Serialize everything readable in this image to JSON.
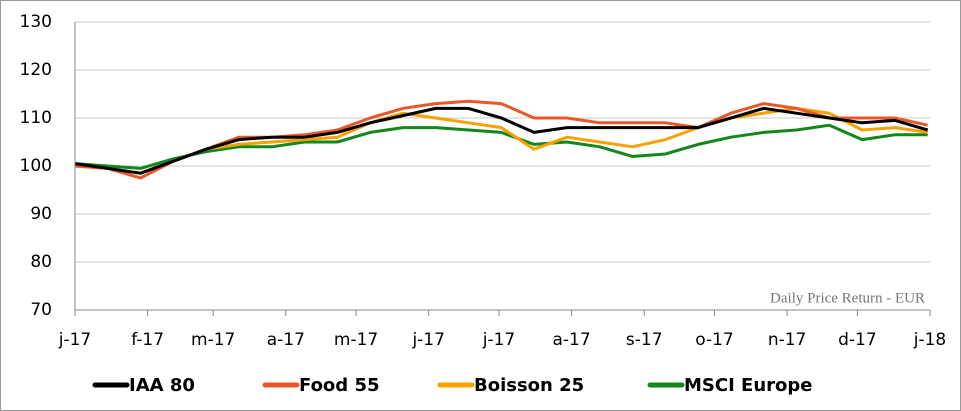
{
  "chart_data": {
    "type": "line",
    "annotation": "Daily Price Return - EUR",
    "x": [
      0,
      14,
      28,
      42,
      56,
      70,
      84,
      98,
      112,
      126,
      140,
      154,
      168,
      182,
      196,
      210,
      224,
      238,
      252,
      266,
      280,
      294,
      308,
      322,
      336,
      350,
      364
    ],
    "xlim": [
      0,
      365
    ],
    "xticks": [
      {
        "value": 0,
        "label": "j-17"
      },
      {
        "value": 31,
        "label": "f-17"
      },
      {
        "value": 59,
        "label": "m-17"
      },
      {
        "value": 90,
        "label": "a-17"
      },
      {
        "value": 120,
        "label": "m-17"
      },
      {
        "value": 151,
        "label": "j-17"
      },
      {
        "value": 181,
        "label": "j-17"
      },
      {
        "value": 212,
        "label": "a-17"
      },
      {
        "value": 243,
        "label": "s-17"
      },
      {
        "value": 273,
        "label": "o-17"
      },
      {
        "value": 304,
        "label": "n-17"
      },
      {
        "value": 334,
        "label": "d-17"
      },
      {
        "value": 365,
        "label": "j-18"
      }
    ],
    "ylim": [
      70,
      130
    ],
    "yticks": [
      70,
      80,
      90,
      100,
      110,
      120,
      130
    ],
    "grid": true,
    "legend": "bottom",
    "series": [
      {
        "name": "IAA 80",
        "color": "#000000",
        "values": [
          100.5,
          99.5,
          98.5,
          101,
          103.5,
          105.5,
          106,
          106,
          107,
          109,
          110.5,
          112,
          112,
          110,
          107,
          108,
          108,
          108,
          108,
          108,
          110,
          112,
          111,
          110,
          109,
          109.5,
          107.5
        ]
      },
      {
        "name": "Food 55",
        "color": "#e8582a",
        "values": [
          100,
          99.5,
          97.5,
          101,
          103.5,
          106,
          106,
          106.5,
          107.5,
          110,
          112,
          113,
          113.5,
          113,
          110,
          110,
          109,
          109,
          109,
          108,
          111,
          113,
          112,
          110,
          110,
          110,
          108.5
        ]
      },
      {
        "name": "Boisson 25",
        "color": "#f5a100",
        "values": [
          100,
          99.5,
          98.5,
          101,
          103.5,
          104.5,
          105,
          105.5,
          106,
          109,
          111,
          110,
          109,
          108,
          103.5,
          106,
          105,
          104,
          105.5,
          108,
          110,
          111,
          112,
          111,
          107.5,
          108,
          107
        ]
      },
      {
        "name": "MSCI Europe",
        "color": "#12871c",
        "values": [
          100.5,
          100,
          99.5,
          101.5,
          103,
          104,
          104,
          105,
          105,
          107,
          108,
          108,
          107.5,
          107,
          104.5,
          105,
          104,
          102,
          102.5,
          104.5,
          106,
          107,
          107.5,
          108.5,
          105.5,
          106.5,
          106.5
        ]
      }
    ]
  }
}
